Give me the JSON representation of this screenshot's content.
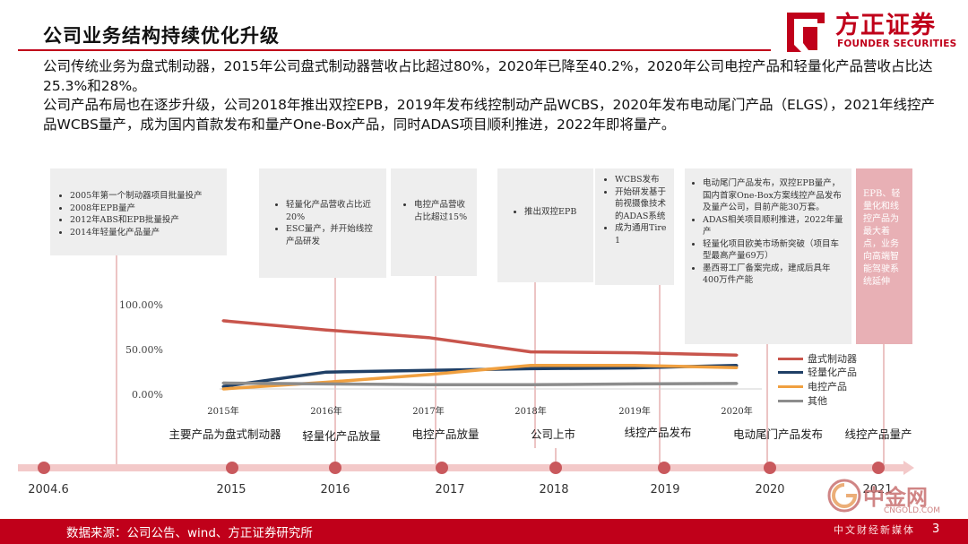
{
  "header": {
    "title": "公司业务结构持续优化升级",
    "brand_cn": "方正证券",
    "brand_en": "FOUNDER SECURITIES"
  },
  "intro": {
    "paragraph1": "公司传统业务为盘式制动器，2015年公司盘式制动器营收占比超过80%，2020年已降至40.2%，2020年公司电控产品和轻量化产品营收占比达25.3%和28%。",
    "paragraph2": "公司产品布局也在逐步升级，公司2018年推出双控EPB，2019年发布线控制动产品WCBS，2020年发布电动尾门产品（ELGS），2021年线控产品WCBS量产，成为国内首款发布和量产One-Box产品，同时ADAS项目顺利推进，2022年即将量产。"
  },
  "event_boxes": [
    {
      "items": [
        "2005年第一个制动器项目批量投产",
        "2008年EPB量产",
        "2012年ABS和EPB批量投产",
        "2014年轻量化产品量产"
      ]
    },
    {
      "items": [
        "轻量化产品营收占比近20%",
        "ESC量产，并开始线控产品研发"
      ]
    },
    {
      "items": [
        "电控产品营收占比超过15%"
      ]
    },
    {
      "items": [
        "推出双控EPB"
      ]
    },
    {
      "items": [
        "WCBS发布",
        "开始研发基于前视摄像技术的ADAS系统",
        "成为通用Tire 1"
      ]
    },
    {
      "items": [
        "电动尾门产品发布，双控EPB量产，国内首家One-Box方案线控产品发布及量产公司，目前产能30万套。",
        "ADAS相关项目顺利推进，2022年量产",
        "轻量化项目欧美市场新突破（项目车型最高产量69万）",
        "墨西哥工厂备案完成，建成后具年400万件产能"
      ]
    },
    {
      "text": "EPB、轻量化和线控产品为最大着点，业务向高端智能驾驶系统延伸"
    }
  ],
  "chart_data": {
    "type": "line",
    "title": "",
    "xlabel": "",
    "ylabel": "",
    "x": [
      "2015年",
      "2016年",
      "2017年",
      "2018年",
      "2019年",
      "2020年"
    ],
    "ylim": [
      0,
      100
    ],
    "y_ticks": [
      "100.00%",
      "50.00%",
      "0.00%"
    ],
    "series": [
      {
        "name": "盘式制动器",
        "color": "#c8554c",
        "values": [
          81,
          70,
          61,
          44,
          43,
          40.2
        ]
      },
      {
        "name": "轻量化产品",
        "color": "#1f3f66",
        "values": [
          3,
          20,
          22,
          24,
          25,
          28
        ]
      },
      {
        "name": "电控产品",
        "color": "#f0a040",
        "values": [
          0,
          8,
          17,
          28,
          28,
          25.3
        ]
      },
      {
        "name": "其他",
        "color": "#8c8c8c",
        "values": [
          7,
          6,
          5,
          5,
          6,
          6.5
        ]
      }
    ],
    "legend_position": "right"
  },
  "timeline": {
    "milestones": [
      "主要产品为盘式制动器",
      "轻量化产品放量",
      "电控产品放量",
      "公司上市",
      "线控产品发布",
      "电动尾门产品发布",
      "线控产品量产"
    ],
    "years": [
      "2004.6",
      "2015",
      "2016",
      "2017",
      "2018",
      "2019",
      "2020",
      "2021"
    ]
  },
  "footer": {
    "source": "数据来源：公司公告、wind、方正证券研究所",
    "page_number": "3"
  },
  "watermark": {
    "name": "中金网",
    "domain": "CNGOLD.COM",
    "tagline": "中文财经新媒体"
  }
}
